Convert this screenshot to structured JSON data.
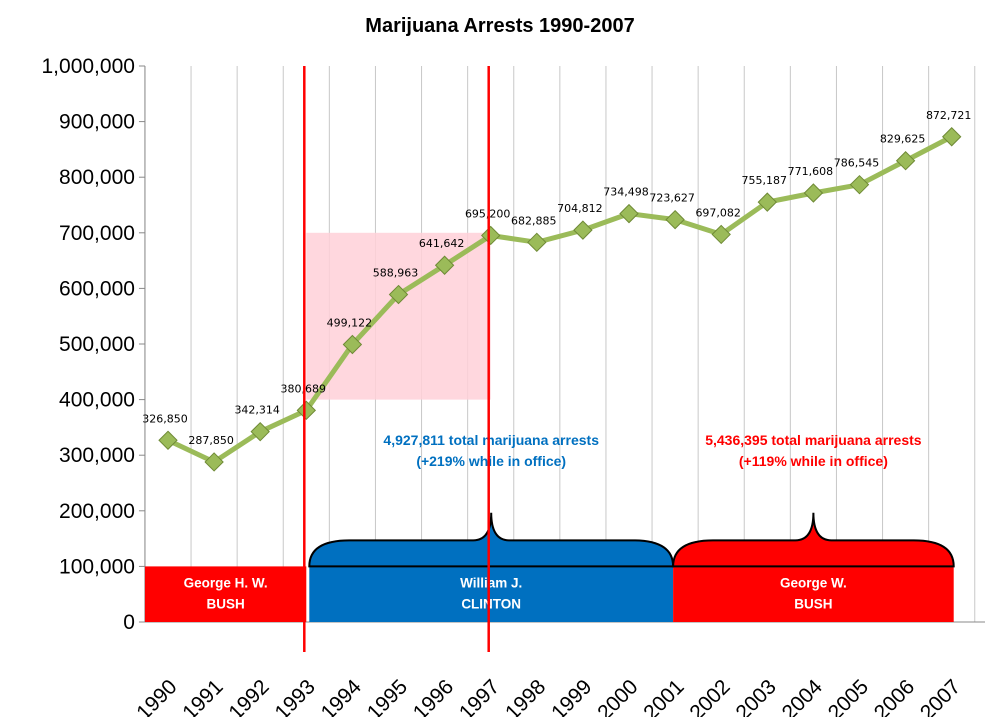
{
  "chart_data": {
    "type": "line",
    "title": "Marijuana Arrests 1990-2007",
    "xlabel": "",
    "ylabel": "",
    "categories": [
      "1990",
      "1991",
      "1992",
      "1993",
      "1994",
      "1995",
      "1996",
      "1997",
      "1998",
      "1999",
      "2000",
      "2001",
      "2002",
      "2003",
      "2004",
      "2005",
      "2006",
      "2007"
    ],
    "series": [
      {
        "values": [
          326850,
          287850,
          342314,
          380689,
          499122,
          588963,
          641642,
          695200,
          682885,
          704812,
          734498,
          723627,
          697082,
          755187,
          771608,
          786545,
          829625,
          872721
        ],
        "labels": [
          "326,850",
          "287,850",
          "342,314",
          "380,689",
          "499,122",
          "588,963",
          "641,642",
          "695,200",
          "682,885",
          "704,812",
          "734,498",
          "723,627",
          "697,082",
          "755,187",
          "771,608",
          "786,545",
          "829,625",
          "872,721"
        ]
      }
    ],
    "ylim": [
      0,
      1000000
    ],
    "yticks": [
      {
        "value": 0,
        "label": "0"
      },
      {
        "value": 100000,
        "label": "100,000"
      },
      {
        "value": 200000,
        "label": "200,000"
      },
      {
        "value": 300000,
        "label": "300,000"
      },
      {
        "value": 400000,
        "label": "400,000"
      },
      {
        "value": 500000,
        "label": "500,000"
      },
      {
        "value": 600000,
        "label": "600,000"
      },
      {
        "value": 700000,
        "label": "700,000"
      },
      {
        "value": 800000,
        "label": "800,000"
      },
      {
        "value": 900000,
        "label": "900,000"
      },
      {
        "value": 1000000,
        "label": "1,000,000"
      }
    ],
    "grid": "vertical",
    "line_color": "#9bbb59",
    "marker_color": "#9bbb59",
    "presidencies": [
      {
        "name_line1": "George H. W.",
        "name_line2": "BUSH",
        "color": "#ff0000",
        "from": "1990",
        "to": "1993"
      },
      {
        "name_line1": "William J.",
        "name_line2": "CLINTON",
        "color": "#0070c0",
        "from": "1993",
        "to": "2001"
      },
      {
        "name_line1": "George W.",
        "name_line2": "BUSH",
        "color": "#ff0000",
        "from": "2001",
        "to": "2007"
      }
    ],
    "annotations": [
      {
        "line1": "4,927,811 total marijuana arrests",
        "line2": "(+219% while in office)",
        "color": "#0070c0"
      },
      {
        "line1": "5,436,395 total marijuana arrests",
        "line2": "(+119% while in office)",
        "color": "#ff0000"
      }
    ],
    "highlight": {
      "from": "1993",
      "to": "1997",
      "ymin": 400000,
      "ymax": 700000,
      "color": "#ffd0d8"
    },
    "markers_lines": [
      {
        "at": "1993",
        "color": "#ff0000"
      },
      {
        "at": "1997",
        "color": "#ff0000"
      }
    ]
  }
}
